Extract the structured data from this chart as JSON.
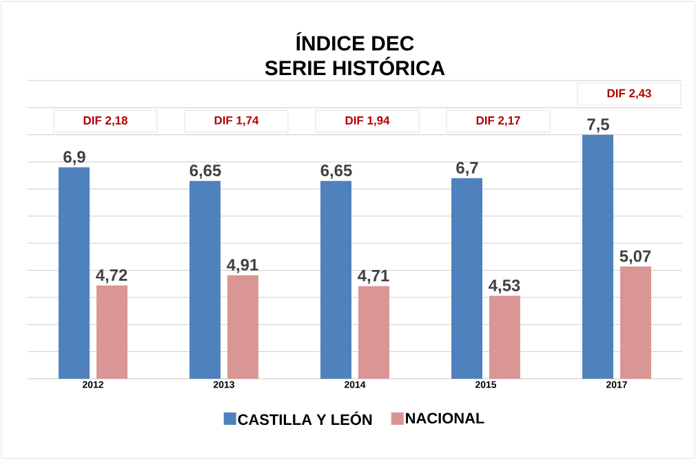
{
  "chart_data": {
    "type": "bar",
    "title": "ÍNDICE DEC\nSERIE HISTÓRICA",
    "categories": [
      "2012",
      "2013",
      "2014",
      "2015",
      "2017"
    ],
    "series": [
      {
        "name": "CASTILLA Y LEÓN",
        "color": "#4f81bd",
        "values": [
          6.9,
          6.65,
          6.65,
          6.7,
          7.5
        ],
        "value_labels": [
          "6,9",
          "6,65",
          "6,65",
          "6,7",
          "7,5"
        ]
      },
      {
        "name": "NACIONAL",
        "color": "#d99694",
        "values": [
          4.72,
          4.91,
          4.71,
          4.53,
          5.07
        ],
        "value_labels": [
          "4,72",
          "4,91",
          "4,71",
          "4,53",
          "5,07"
        ]
      }
    ],
    "annotations": [
      "DIF 2,18",
      "DIF 1,74",
      "DIF 1,94",
      "DIF 2,17",
      "DIF 2,43"
    ],
    "ylim": [
      3,
      8.5
    ],
    "yticks": [
      {
        "value": 3,
        "label": null
      },
      {
        "value": 3.5,
        "label": null
      },
      {
        "value": 4,
        "label": null
      },
      {
        "value": 4.5,
        "label": null
      },
      {
        "value": 5,
        "label": null
      },
      {
        "value": 5.5,
        "label": null
      },
      {
        "value": 6,
        "label": null
      },
      {
        "value": 6.5,
        "label": null
      },
      {
        "value": 7,
        "label": null
      },
      {
        "value": 7.5,
        "label": null
      },
      {
        "value": 8,
        "label": null
      },
      {
        "value": 8.5,
        "label": null
      }
    ],
    "tick_labels": "x",
    "grid": "y",
    "legend": "bottom"
  }
}
